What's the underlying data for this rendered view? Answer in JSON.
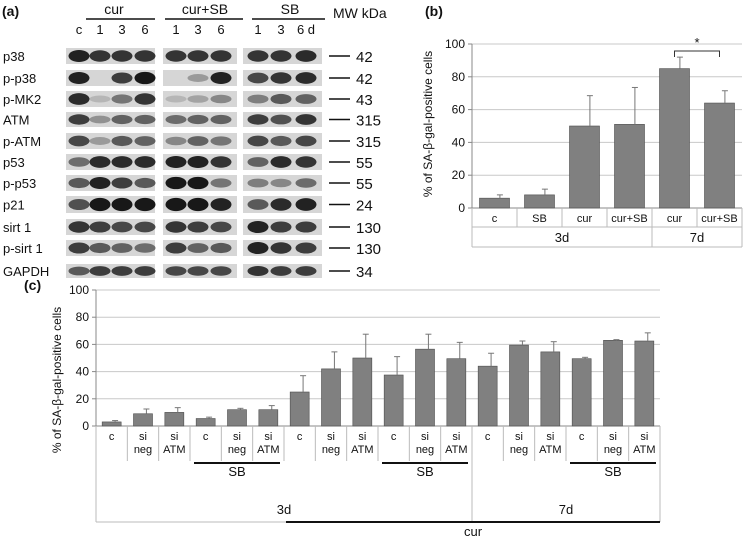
{
  "panels": {
    "a": {
      "label": "(a)",
      "group_headers": [
        "cur",
        "cur+SB",
        "SB"
      ],
      "lane_labels": [
        "c",
        "1",
        "3",
        "6",
        "1",
        "3",
        "6",
        "1",
        "3",
        "6 d"
      ],
      "mw_header": "MW kDa",
      "blots": [
        {
          "protein": "p38",
          "mw": "42"
        },
        {
          "protein": "p-p38",
          "mw": "42"
        },
        {
          "protein": "p-MK2",
          "mw": "43"
        },
        {
          "protein": "ATM",
          "mw": "315"
        },
        {
          "protein": "p-ATM",
          "mw": "315"
        },
        {
          "protein": "p53",
          "mw": "55"
        },
        {
          "protein": "p-p53",
          "mw": "55"
        },
        {
          "protein": "p21",
          "mw": "24"
        },
        {
          "protein": "sirt 1",
          "mw": "130"
        },
        {
          "protein": "p-sirt 1",
          "mw": "130"
        },
        {
          "protein": "GAPDH",
          "mw": "34"
        }
      ]
    },
    "b": {
      "label": "(b)"
    },
    "c": {
      "label": "(c)"
    }
  },
  "colors": {
    "bar": "#808080",
    "bar_edge": "#4d4d4d",
    "grid": "#c8c8c8",
    "band": "#1a1a1a"
  },
  "chart_data": [
    {
      "panel": "b",
      "type": "bar",
      "ylabel": "% of SA-β-gal-positive cells",
      "ylim": [
        0,
        100
      ],
      "yticks": [
        0,
        20,
        40,
        60,
        80,
        100
      ],
      "grid": true,
      "categories": [
        "c",
        "SB",
        "cur",
        "cur+SB",
        "cur",
        "cur+SB"
      ],
      "values": [
        6,
        8,
        50,
        51,
        85,
        64
      ],
      "errors": [
        2,
        3.5,
        18.5,
        22.5,
        7,
        7.5
      ],
      "time_groups": [
        {
          "label": "3d",
          "first": 0,
          "last": 3
        },
        {
          "label": "7d",
          "first": 4,
          "last": 5
        }
      ],
      "annotation": {
        "text": "*",
        "between": [
          4,
          5
        ]
      }
    },
    {
      "panel": "c",
      "type": "bar",
      "ylabel": "% of SA-β-gal-positive cells",
      "ylim": [
        0,
        100
      ],
      "yticks": [
        0,
        20,
        40,
        60,
        80,
        100
      ],
      "grid": true,
      "categories": [
        "c",
        "si neg",
        "si ATM",
        "c",
        "si neg",
        "si ATM",
        "c",
        "si neg",
        "si ATM",
        "c",
        "si neg",
        "si ATM",
        "c",
        "si neg",
        "si ATM",
        "c",
        "si neg",
        "si ATM"
      ],
      "values": [
        3,
        9,
        10,
        5.5,
        12,
        12,
        25,
        42,
        50,
        37.5,
        56.5,
        49.5,
        44,
        59.5,
        54.5,
        49.5,
        63,
        62.5
      ],
      "errors": [
        1,
        3.5,
        3.5,
        1,
        1,
        3,
        12,
        12.5,
        17.5,
        13.5,
        11,
        12,
        9.5,
        3,
        7.5,
        1,
        0.5,
        6
      ],
      "sb_groups": [
        {
          "label": "SB",
          "first": 3,
          "last": 5
        },
        {
          "label": "SB",
          "first": 9,
          "last": 11
        },
        {
          "label": "SB",
          "first": 15,
          "last": 17
        }
      ],
      "time_groups": [
        {
          "label": "3d",
          "first": 0,
          "last": 11
        },
        {
          "label": "7d",
          "first": 12,
          "last": 17
        }
      ],
      "cur_group": {
        "label": "cur",
        "first": 6,
        "last": 17
      }
    }
  ]
}
